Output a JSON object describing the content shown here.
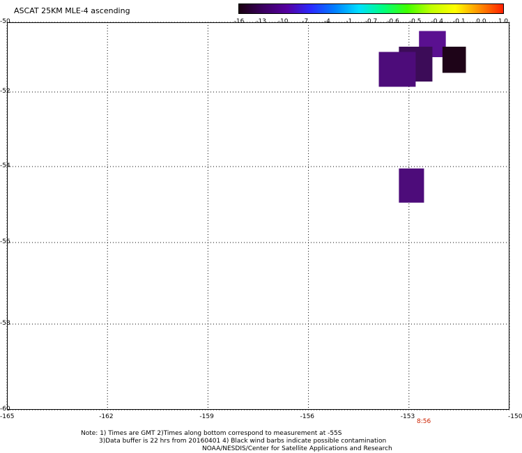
{
  "title": "ASCAT 25KM MLE-4 ascending",
  "colorbar": {
    "gradient": [
      "#1a0010",
      "#3b0060",
      "#5500a0",
      "#2a2aff",
      "#0080ff",
      "#00e0ff",
      "#00ff80",
      "#40ff00",
      "#c0ff00",
      "#ffff00",
      "#ff9000",
      "#ff2000"
    ],
    "ticks": [
      "-16",
      "-13",
      "-10",
      "-7",
      "-4",
      "-1",
      "-0.7",
      "-0.6",
      "-0.5",
      "-0.4",
      "-0.1",
      "0.0",
      "1.0"
    ]
  },
  "axes": {
    "y_ticks": [
      "-50",
      "-52",
      "-54",
      "-56",
      "-58",
      "-60"
    ],
    "x_ticks": [
      "-165",
      "-162",
      "-159",
      "-156",
      "-153",
      "-150"
    ],
    "grid": true
  },
  "time_label": "8:56",
  "notes": {
    "line1": "Note: 1) Times are GMT 2)Times along bottom correspond to measurement at -55S",
    "line2": "3)Data buffer is 22 hrs from 20160401 4) Black wind barbs indicate possible contamination",
    "line3": "NOAA/NESDIS/Center for Satellite Applications and Research"
  },
  "cells": [
    {
      "lon": [
        -152.7,
        -151.9
      ],
      "lat": [
        -50.25,
        -51.0
      ],
      "color": "#5a1090"
    },
    {
      "lon": [
        -152.0,
        -151.3
      ],
      "lat": [
        -50.7,
        -51.45
      ],
      "color": "#1e0418"
    },
    {
      "lon": [
        -153.3,
        -152.3
      ],
      "lat": [
        -50.7,
        -51.7
      ],
      "color": "#3c0c58"
    },
    {
      "lon": [
        -153.9,
        -152.8
      ],
      "lat": [
        -50.85,
        -51.85
      ],
      "color": "#4d0c7a"
    },
    {
      "lon": [
        -153.3,
        -152.55
      ],
      "lat": [
        -54.05,
        -54.95
      ],
      "color": "#4d0c7a"
    }
  ],
  "colors": {
    "grid": "#000000",
    "background": "#ffffff"
  }
}
